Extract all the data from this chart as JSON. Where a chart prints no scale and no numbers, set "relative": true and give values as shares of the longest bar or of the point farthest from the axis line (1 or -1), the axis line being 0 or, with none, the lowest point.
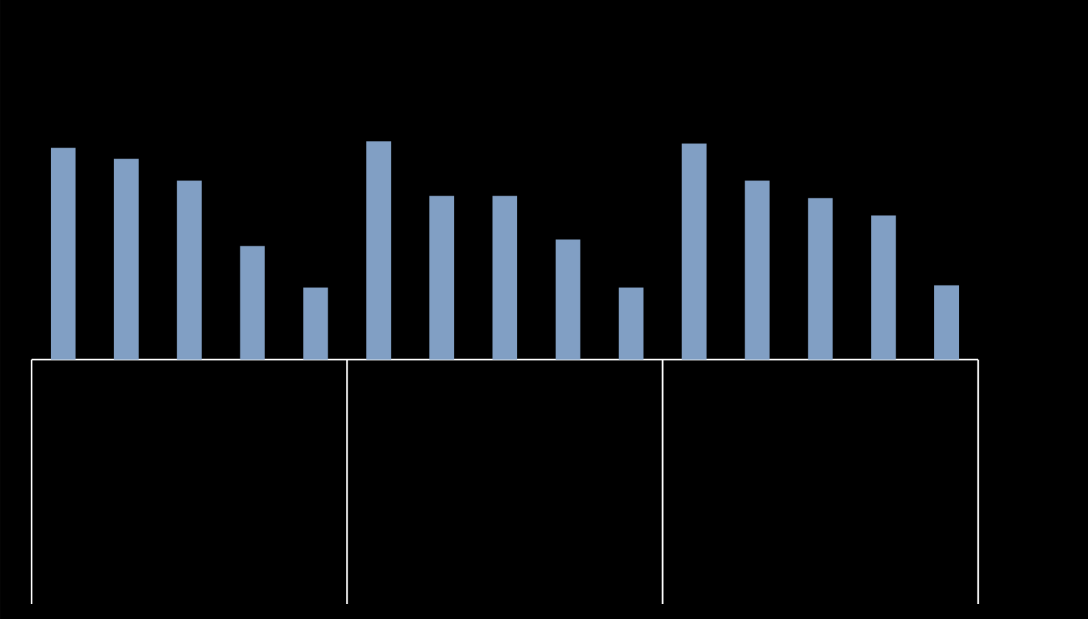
{
  "chart_data": {
    "type": "bar",
    "relative": true,
    "color": "#819fc4",
    "categories": [
      null,
      null,
      null,
      null,
      null,
      null,
      null,
      null,
      null,
      null,
      null,
      null,
      null,
      null,
      null
    ],
    "values": [
      0.97,
      0.92,
      0.82,
      0.52,
      0.33,
      1,
      0.75,
      0.75,
      0.55,
      0.33,
      0.99,
      0.82,
      0.74,
      0.66,
      0.34
    ]
  }
}
